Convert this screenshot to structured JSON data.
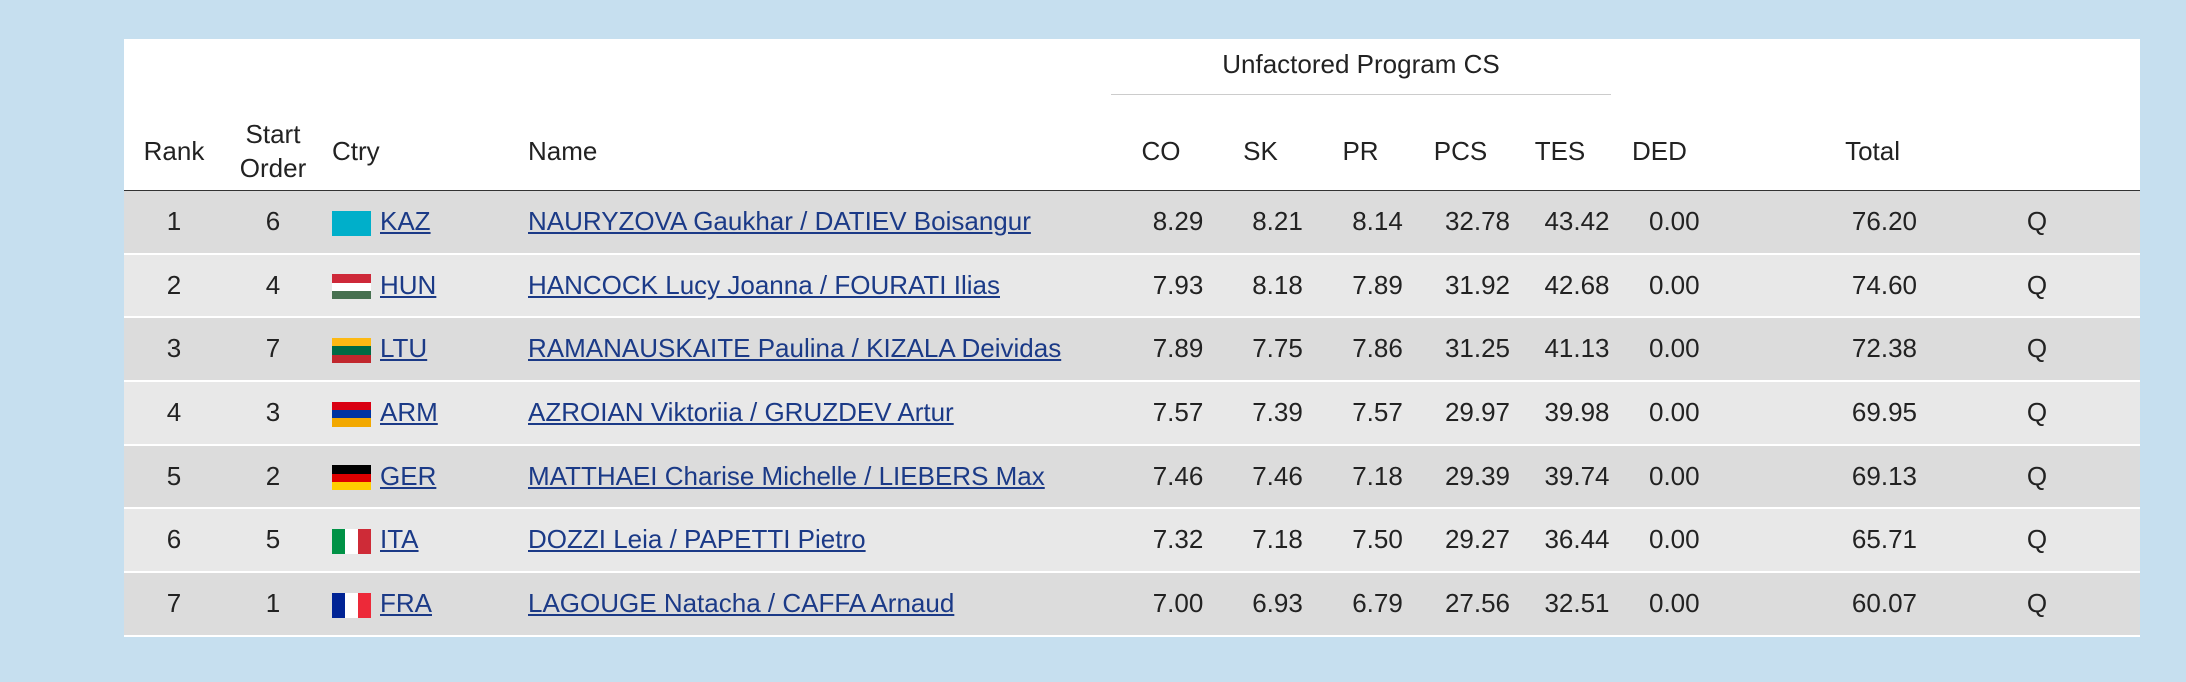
{
  "table": {
    "group_header": "Unfactored Program CS",
    "columns": {
      "rank": "Rank",
      "start": "Start Order",
      "ctry": "Ctry",
      "name": "Name",
      "co": "CO",
      "sk": "SK",
      "pr": "PR",
      "pcs": "PCS",
      "tes": "TES",
      "ded": "DED",
      "total": "Total"
    },
    "rows": [
      {
        "rank": "1",
        "start": "6",
        "ctry": "KAZ",
        "name": "NAURYZOVA Gaukhar / DATIEV Boisangur",
        "co": "8.29",
        "sk": "8.21",
        "pr": "8.14",
        "pcs": "32.78",
        "tes": "43.42",
        "ded": "0.00",
        "total": "76.20",
        "q": "Q"
      },
      {
        "rank": "2",
        "start": "4",
        "ctry": "HUN",
        "name": "HANCOCK Lucy Joanna / FOURATI Ilias",
        "co": "7.93",
        "sk": "8.18",
        "pr": "7.89",
        "pcs": "31.92",
        "tes": "42.68",
        "ded": "0.00",
        "total": "74.60",
        "q": "Q"
      },
      {
        "rank": "3",
        "start": "7",
        "ctry": "LTU",
        "name": "RAMANAUSKAITE Paulina / KIZALA Deividas",
        "co": "7.89",
        "sk": "7.75",
        "pr": "7.86",
        "pcs": "31.25",
        "tes": "41.13",
        "ded": "0.00",
        "total": "72.38",
        "q": "Q"
      },
      {
        "rank": "4",
        "start": "3",
        "ctry": "ARM",
        "name": "AZROIAN Viktoriia / GRUZDEV Artur",
        "co": "7.57",
        "sk": "7.39",
        "pr": "7.57",
        "pcs": "29.97",
        "tes": "39.98",
        "ded": "0.00",
        "total": "69.95",
        "q": "Q"
      },
      {
        "rank": "5",
        "start": "2",
        "ctry": "GER",
        "name": "MATTHAEI Charise Michelle / LIEBERS Max",
        "co": "7.46",
        "sk": "7.46",
        "pr": "7.18",
        "pcs": "29.39",
        "tes": "39.74",
        "ded": "0.00",
        "total": "69.13",
        "q": "Q"
      },
      {
        "rank": "6",
        "start": "5",
        "ctry": "ITA",
        "name": "DOZZI Leia / PAPETTI Pietro",
        "co": "7.32",
        "sk": "7.18",
        "pr": "7.50",
        "pcs": "29.27",
        "tes": "36.44",
        "ded": "0.00",
        "total": "65.71",
        "q": "Q"
      },
      {
        "rank": "7",
        "start": "1",
        "ctry": "FRA",
        "name": "LAGOUGE Natacha / CAFFA Arnaud",
        "co": "7.00",
        "sk": "6.93",
        "pr": "6.79",
        "pcs": "27.56",
        "tes": "32.51",
        "ded": "0.00",
        "total": "60.07",
        "q": "Q"
      }
    ]
  }
}
